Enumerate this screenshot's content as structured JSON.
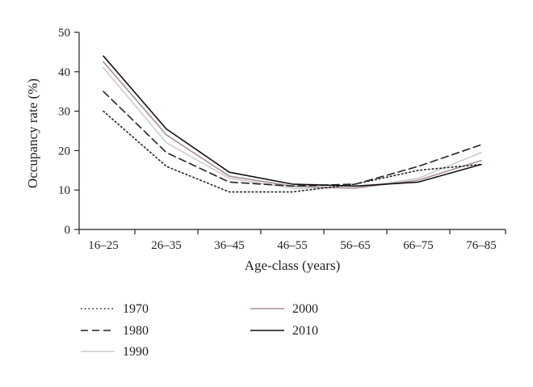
{
  "chart_data": {
    "type": "line",
    "title": "",
    "xlabel": "Age-class (years)",
    "ylabel": "Occupancy rate (%)",
    "categories": [
      "16–25",
      "26–35",
      "36–45",
      "46–55",
      "56–65",
      "66–75",
      "76–85"
    ],
    "ylim": [
      0,
      50
    ],
    "yticks": [
      0,
      10,
      20,
      30,
      40,
      50
    ],
    "grid": false,
    "legend_position": "bottom",
    "series": [
      {
        "name": "1970",
        "values": [
          30,
          16,
          9.5,
          9.5,
          11.5,
          15,
          16.5
        ],
        "color": "#222222",
        "dash": "dotted"
      },
      {
        "name": "1980",
        "values": [
          35,
          19.5,
          12,
          11,
          11.5,
          16,
          21.5
        ],
        "color": "#222222",
        "dash": "dashed"
      },
      {
        "name": "1990",
        "values": [
          41,
          22,
          13,
          10.5,
          10.5,
          13,
          19.5
        ],
        "color": "#cccccc",
        "dash": "solid"
      },
      {
        "name": "2000",
        "values": [
          42.5,
          24,
          13.5,
          11,
          10.5,
          12.5,
          17.5
        ],
        "color": "#a89090",
        "dash": "solid"
      },
      {
        "name": "2010",
        "values": [
          44,
          25.5,
          14.5,
          11.5,
          11,
          12,
          16.5
        ],
        "color": "#111111",
        "dash": "solid"
      }
    ]
  }
}
